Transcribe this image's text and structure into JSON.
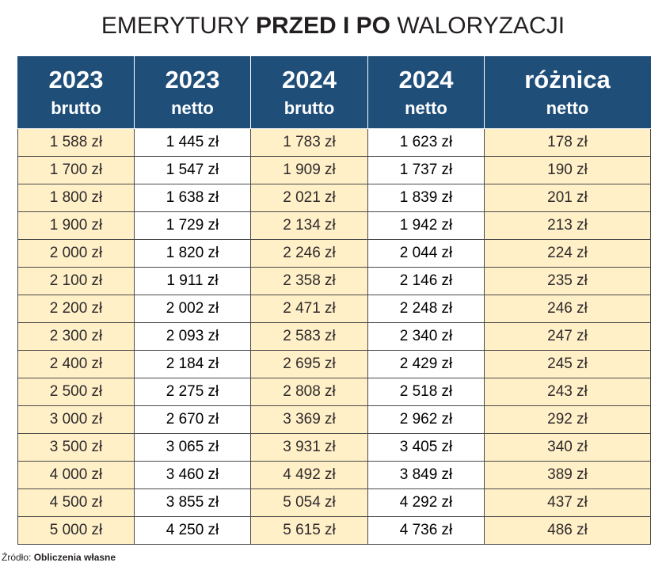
{
  "title": {
    "part1": "EMERYTURY ",
    "part2": "PRZED I PO",
    "part3": " WALORYZACJI"
  },
  "source": {
    "label": "Źródło: ",
    "value": "Obliczenia własne"
  },
  "colors": {
    "header_bg": "#1f4e79",
    "cell_yellow": "#fff0c8",
    "cell_white": "#ffffff"
  },
  "chart_data": {
    "type": "table",
    "title": "EMERYTURY PRZED I PO WALORYZACJI",
    "columns": [
      {
        "top": "2023",
        "bottom": "brutto"
      },
      {
        "top": "2023",
        "bottom": "netto"
      },
      {
        "top": "2024",
        "bottom": "brutto"
      },
      {
        "top": "2024",
        "bottom": "netto"
      },
      {
        "top": "różnica",
        "bottom": "netto"
      }
    ],
    "rows": [
      [
        "1 588 zł",
        "1 445 zł",
        "1 783 zł",
        "1 623 zł",
        "178 zł"
      ],
      [
        "1 700 zł",
        "1 547 zł",
        "1 909 zł",
        "1 737 zł",
        "190 zł"
      ],
      [
        "1 800 zł",
        "1 638 zł",
        "2 021 zł",
        "1 839 zł",
        "201 zł"
      ],
      [
        "1 900 zł",
        "1 729 zł",
        "2 134 zł",
        "1 942 zł",
        "213 zł"
      ],
      [
        "2 000 zł",
        "1 820 zł",
        "2 246 zł",
        "2 044 zł",
        "224 zł"
      ],
      [
        "2 100 zł",
        "1 911 zł",
        "2 358 zł",
        "2 146 zł",
        "235 zł"
      ],
      [
        "2 200 zł",
        "2 002 zł",
        "2 471 zł",
        "2 248 zł",
        "246 zł"
      ],
      [
        "2 300 zł",
        "2 093 zł",
        "2 583 zł",
        "2 340 zł",
        "247 zł"
      ],
      [
        "2 400 zł",
        "2 184 zł",
        "2 695 zł",
        "2 429 zł",
        "245 zł"
      ],
      [
        "2 500 zł",
        "2 275 zł",
        "2 808 zł",
        "2 518 zł",
        "243 zł"
      ],
      [
        "3 000 zł",
        "2 670 zł",
        "3 369 zł",
        "2 962 zł",
        "292 zł"
      ],
      [
        "3 500 zł",
        "3 065 zł",
        "3 931 zł",
        "3 405 zł",
        "340 zł"
      ],
      [
        "4 000 zł",
        "3 460 zł",
        "4 492 zł",
        "3 849 zł",
        "389 zł"
      ],
      [
        "4 500 zł",
        "3 855 zł",
        "5 054 zł",
        "4 292 zł",
        "437 zł"
      ],
      [
        "5 000 zł",
        "4 250 zł",
        "5 615 zł",
        "4 736 zł",
        "486 zł"
      ]
    ]
  }
}
